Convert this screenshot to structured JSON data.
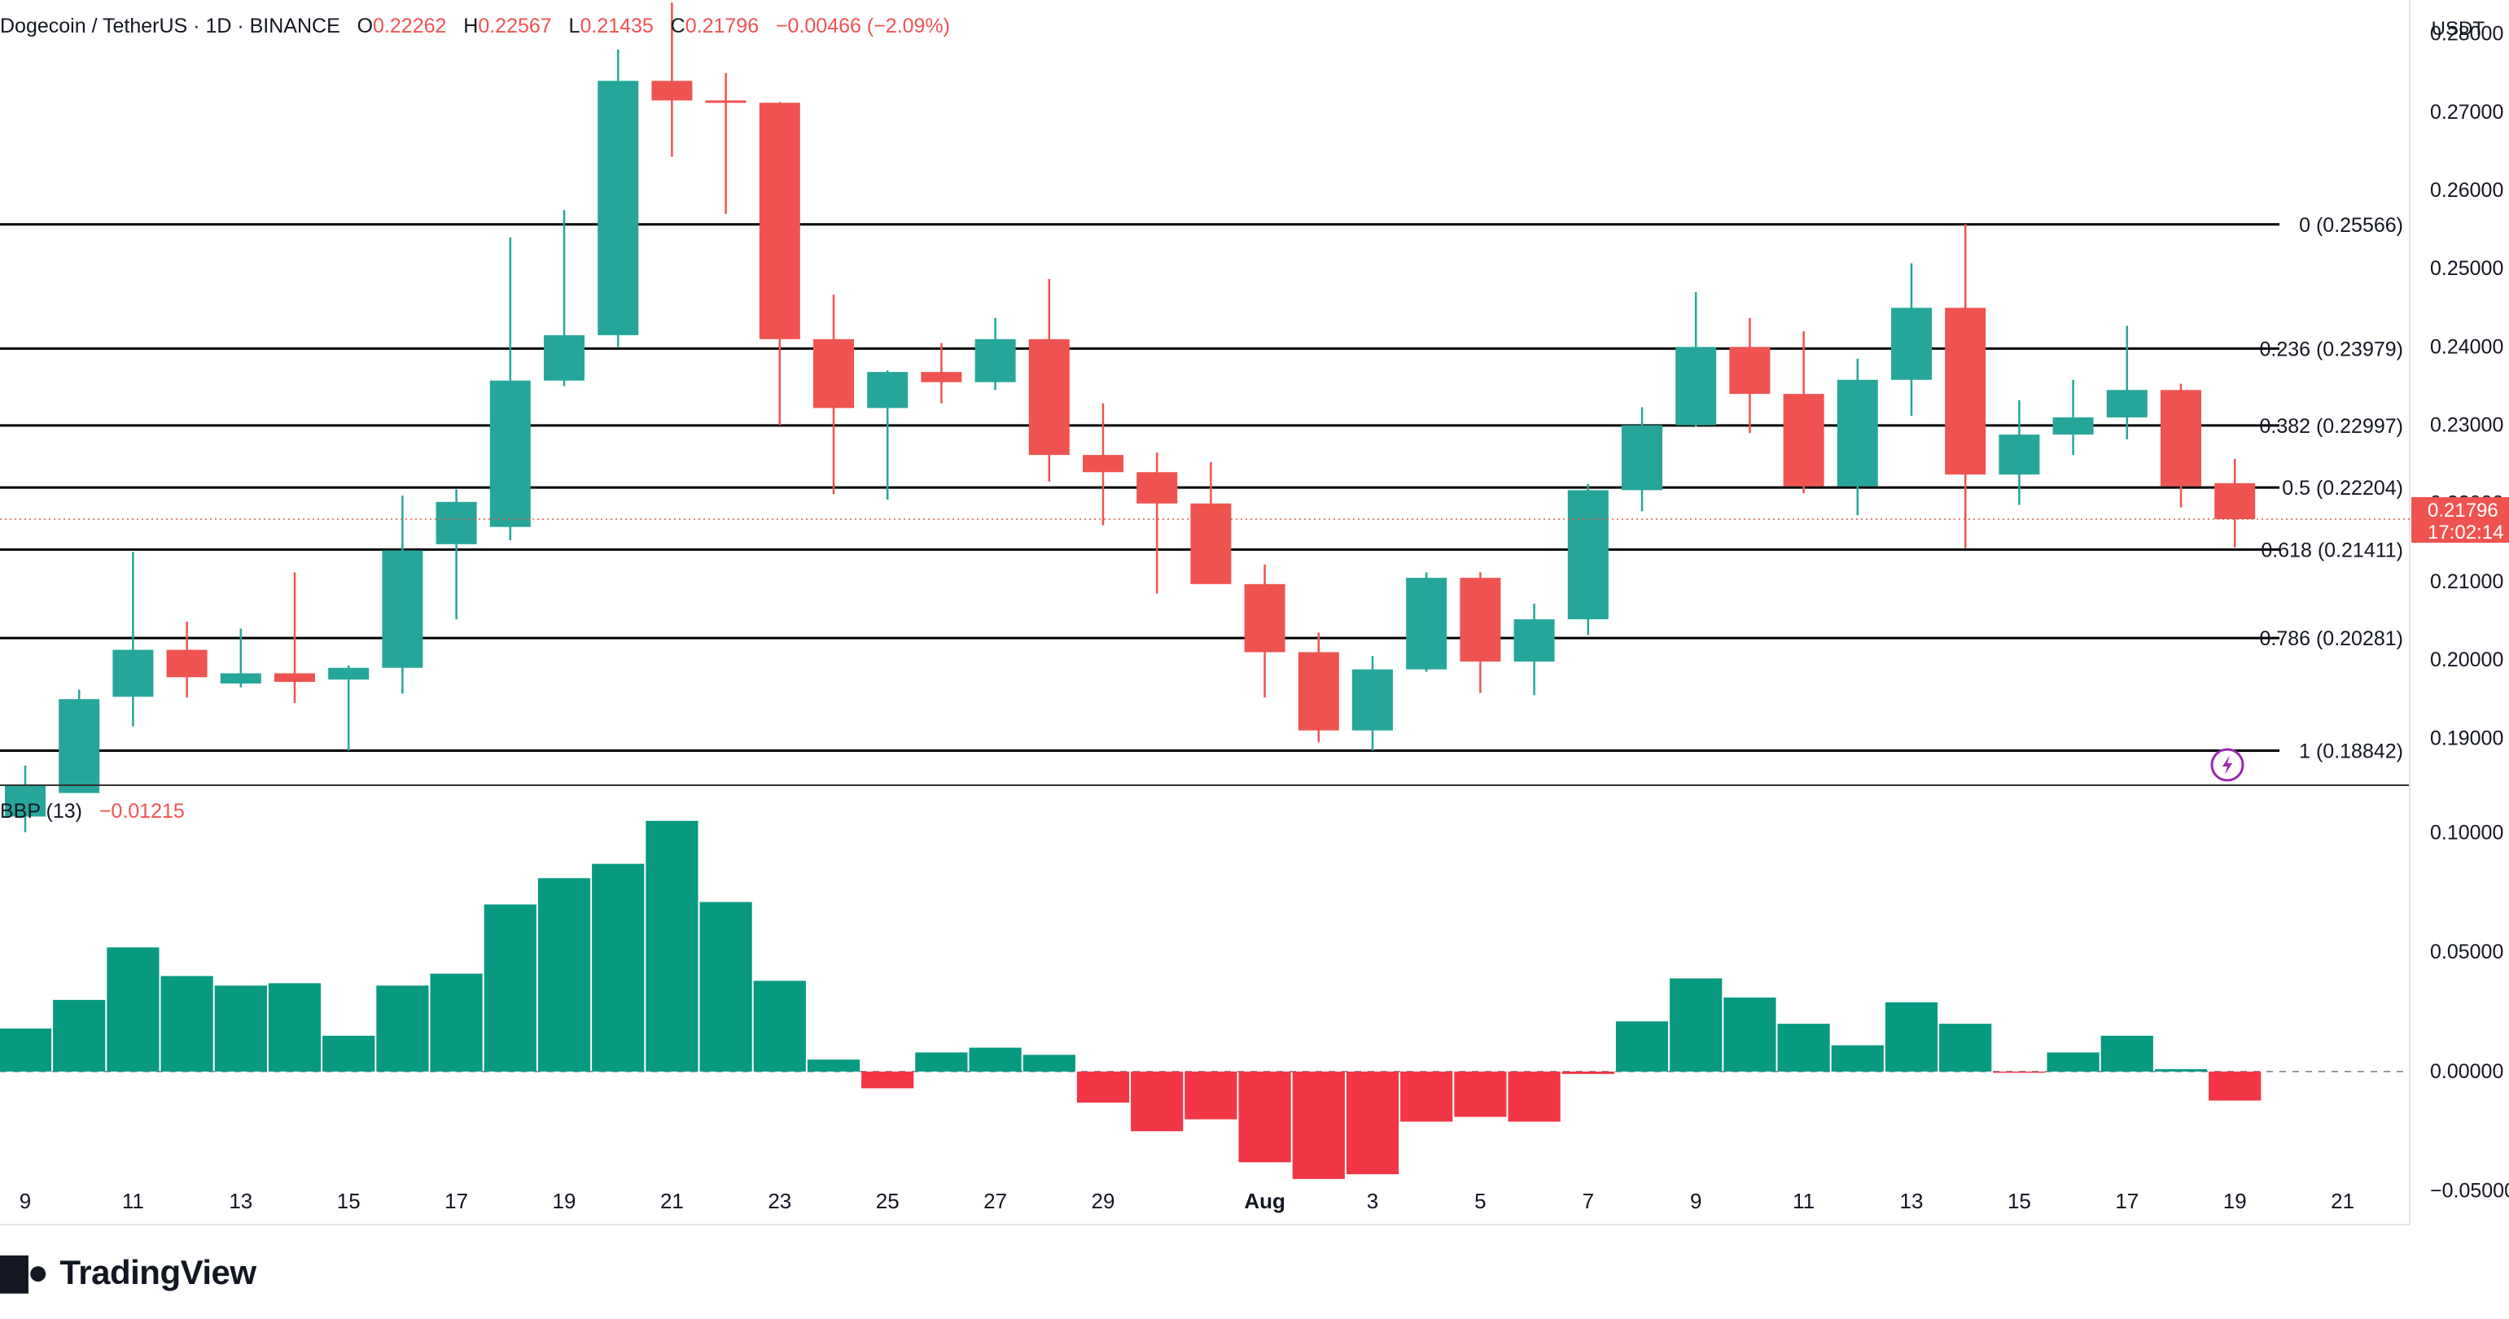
{
  "header": {
    "symbol": "Dogecoin / TetherUS · 1D · BINANCE",
    "o_label": "O",
    "o_value": "0.22262",
    "h_label": "H",
    "h_value": "0.22567",
    "l_label": "L",
    "l_value": "0.21435",
    "c_label": "C",
    "c_value": "0.21796",
    "change": "−0.00466 (−2.09%)"
  },
  "price_axis_unit": "USDT",
  "last_price": {
    "value": "0.21796",
    "countdown": "17:02:14"
  },
  "indicator": {
    "name": "BBP (13)",
    "value": "−0.01215"
  },
  "brand": "TradingView",
  "colors": {
    "up": "#26a69a",
    "down": "#ef5350",
    "bbp_up": "#089981",
    "bbp_down": "#f23645",
    "fib_line": "#000000",
    "grid": "#f0f3fa",
    "alert_icon": "#9c27b0"
  },
  "chart_data": [
    {
      "type": "candlestick",
      "title": "Dogecoin / TetherUS · 1D · BINANCE",
      "ylabel": "USDT",
      "ylim": [
        0.184,
        0.2835
      ],
      "y_ticks": [
        0.19,
        0.2,
        0.21,
        0.22,
        0.23,
        0.24,
        0.25,
        0.26,
        0.27,
        0.28
      ],
      "y_tick_labels": [
        "0.19000",
        "0.20000",
        "0.21000",
        "0.22000",
        "0.23000",
        "0.24000",
        "0.25000",
        "0.26000",
        "0.27000",
        "0.28000"
      ],
      "x_tick_labels": [
        {
          "label": "9",
          "i": 0
        },
        {
          "label": "11",
          "i": 2
        },
        {
          "label": "13",
          "i": 4
        },
        {
          "label": "15",
          "i": 6
        },
        {
          "label": "17",
          "i": 8
        },
        {
          "label": "19",
          "i": 10
        },
        {
          "label": "21",
          "i": 12
        },
        {
          "label": "23",
          "i": 14
        },
        {
          "label": "25",
          "i": 16
        },
        {
          "label": "27",
          "i": 18
        },
        {
          "label": "29",
          "i": 20
        },
        {
          "label": "Aug",
          "i": 23
        },
        {
          "label": "3",
          "i": 25
        },
        {
          "label": "5",
          "i": 27
        },
        {
          "label": "7",
          "i": 29
        },
        {
          "label": "9",
          "i": 31
        },
        {
          "label": "11",
          "i": 33
        },
        {
          "label": "13",
          "i": 35
        },
        {
          "label": "15",
          "i": 37
        },
        {
          "label": "17",
          "i": 39
        },
        {
          "label": "19",
          "i": 41
        },
        {
          "label": "21",
          "i": 43
        }
      ],
      "candles": [
        {
          "o": 0.18,
          "h": 0.1865,
          "l": 0.178,
          "c": 0.184
        },
        {
          "o": 0.183,
          "h": 0.1962,
          "l": 0.183,
          "c": 0.195
        },
        {
          "o": 0.1953,
          "h": 0.2138,
          "l": 0.1915,
          "c": 0.2013
        },
        {
          "o": 0.2013,
          "h": 0.2049,
          "l": 0.1952,
          "c": 0.1978
        },
        {
          "o": 0.197,
          "h": 0.204,
          "l": 0.1965,
          "c": 0.1983
        },
        {
          "o": 0.1983,
          "h": 0.2112,
          "l": 0.1945,
          "c": 0.1972
        },
        {
          "o": 0.1975,
          "h": 0.1993,
          "l": 0.1884,
          "c": 0.199
        },
        {
          "o": 0.199,
          "h": 0.221,
          "l": 0.1957,
          "c": 0.214
        },
        {
          "o": 0.2148,
          "h": 0.2218,
          "l": 0.2052,
          "c": 0.2202
        },
        {
          "o": 0.217,
          "h": 0.254,
          "l": 0.2153,
          "c": 0.2357
        },
        {
          "o": 0.2357,
          "h": 0.2575,
          "l": 0.235,
          "c": 0.2415
        },
        {
          "o": 0.2415,
          "h": 0.278,
          "l": 0.24,
          "c": 0.274
        },
        {
          "o": 0.274,
          "h": 0.284,
          "l": 0.2643,
          "c": 0.2715
        },
        {
          "o": 0.2715,
          "h": 0.275,
          "l": 0.257,
          "c": 0.2713
        },
        {
          "o": 0.2712,
          "h": 0.2713,
          "l": 0.23,
          "c": 0.241
        },
        {
          "o": 0.241,
          "h": 0.2467,
          "l": 0.2212,
          "c": 0.2322
        },
        {
          "o": 0.2322,
          "h": 0.237,
          "l": 0.2205,
          "c": 0.2368
        },
        {
          "o": 0.2368,
          "h": 0.2405,
          "l": 0.2328,
          "c": 0.2355
        },
        {
          "o": 0.2355,
          "h": 0.2437,
          "l": 0.2345,
          "c": 0.241
        },
        {
          "o": 0.241,
          "h": 0.2487,
          "l": 0.2228,
          "c": 0.2262
        },
        {
          "o": 0.2262,
          "h": 0.2328,
          "l": 0.2172,
          "c": 0.224
        },
        {
          "o": 0.224,
          "h": 0.2265,
          "l": 0.2085,
          "c": 0.22
        },
        {
          "o": 0.22,
          "h": 0.2253,
          "l": 0.2098,
          "c": 0.2097
        },
        {
          "o": 0.2097,
          "h": 0.2122,
          "l": 0.1952,
          "c": 0.201
        },
        {
          "o": 0.201,
          "h": 0.2035,
          "l": 0.1895,
          "c": 0.191
        },
        {
          "o": 0.191,
          "h": 0.2005,
          "l": 0.1884,
          "c": 0.1988
        },
        {
          "o": 0.1988,
          "h": 0.2112,
          "l": 0.1985,
          "c": 0.2105
        },
        {
          "o": 0.2105,
          "h": 0.2112,
          "l": 0.1958,
          "c": 0.1998
        },
        {
          "o": 0.1998,
          "h": 0.2072,
          "l": 0.1955,
          "c": 0.2052
        },
        {
          "o": 0.2052,
          "h": 0.2225,
          "l": 0.2032,
          "c": 0.2217
        },
        {
          "o": 0.2217,
          "h": 0.2323,
          "l": 0.219,
          "c": 0.23
        },
        {
          "o": 0.23,
          "h": 0.247,
          "l": 0.2298,
          "c": 0.24
        },
        {
          "o": 0.24,
          "h": 0.2437,
          "l": 0.229,
          "c": 0.234
        },
        {
          "o": 0.234,
          "h": 0.242,
          "l": 0.2213,
          "c": 0.2222
        },
        {
          "o": 0.2222,
          "h": 0.2385,
          "l": 0.2185,
          "c": 0.2358
        },
        {
          "o": 0.2358,
          "h": 0.2507,
          "l": 0.2312,
          "c": 0.245
        },
        {
          "o": 0.245,
          "h": 0.2557,
          "l": 0.2143,
          "c": 0.2237
        },
        {
          "o": 0.2237,
          "h": 0.2332,
          "l": 0.2198,
          "c": 0.2288
        },
        {
          "o": 0.2288,
          "h": 0.2358,
          "l": 0.2262,
          "c": 0.231
        },
        {
          "o": 0.231,
          "h": 0.2427,
          "l": 0.2282,
          "c": 0.2345
        },
        {
          "o": 0.2345,
          "h": 0.2353,
          "l": 0.2195,
          "c": 0.2222
        },
        {
          "o": 0.2226,
          "h": 0.2257,
          "l": 0.2144,
          "c": 0.218
        }
      ],
      "fib_levels": [
        {
          "label": "0 (0.25566)",
          "value": 0.25566
        },
        {
          "label": "0.236 (0.23979)",
          "value": 0.23979
        },
        {
          "label": "0.382 (0.22997)",
          "value": 0.22997
        },
        {
          "label": "0.5 (0.22204)",
          "value": 0.22204
        },
        {
          "label": "0.618 (0.21411)",
          "value": 0.21411
        },
        {
          "label": "0.786 (0.20281)",
          "value": 0.20281
        },
        {
          "label": "1 (0.18842)",
          "value": 0.18842
        }
      ]
    },
    {
      "type": "bar",
      "title": "BBP (13)",
      "ylim": [
        -0.059,
        0.108
      ],
      "y_ticks": [
        -0.05,
        0.0,
        0.05,
        0.1
      ],
      "y_tick_labels": [
        "−0.05000",
        "0.00000",
        "0.05000",
        "0.10000"
      ],
      "values": [
        0.018,
        0.03,
        0.052,
        0.04,
        0.036,
        0.037,
        0.015,
        0.036,
        0.041,
        0.07,
        0.081,
        0.087,
        0.105,
        0.071,
        0.038,
        0.005,
        -0.007,
        0.008,
        0.01,
        0.007,
        -0.013,
        -0.025,
        -0.02,
        -0.038,
        -0.045,
        -0.043,
        -0.021,
        -0.019,
        -0.021,
        -0.001,
        0.021,
        0.039,
        0.031,
        0.02,
        0.011,
        0.029,
        0.02,
        -0.0005,
        0.008,
        0.015,
        0.001,
        -0.01215
      ]
    }
  ]
}
